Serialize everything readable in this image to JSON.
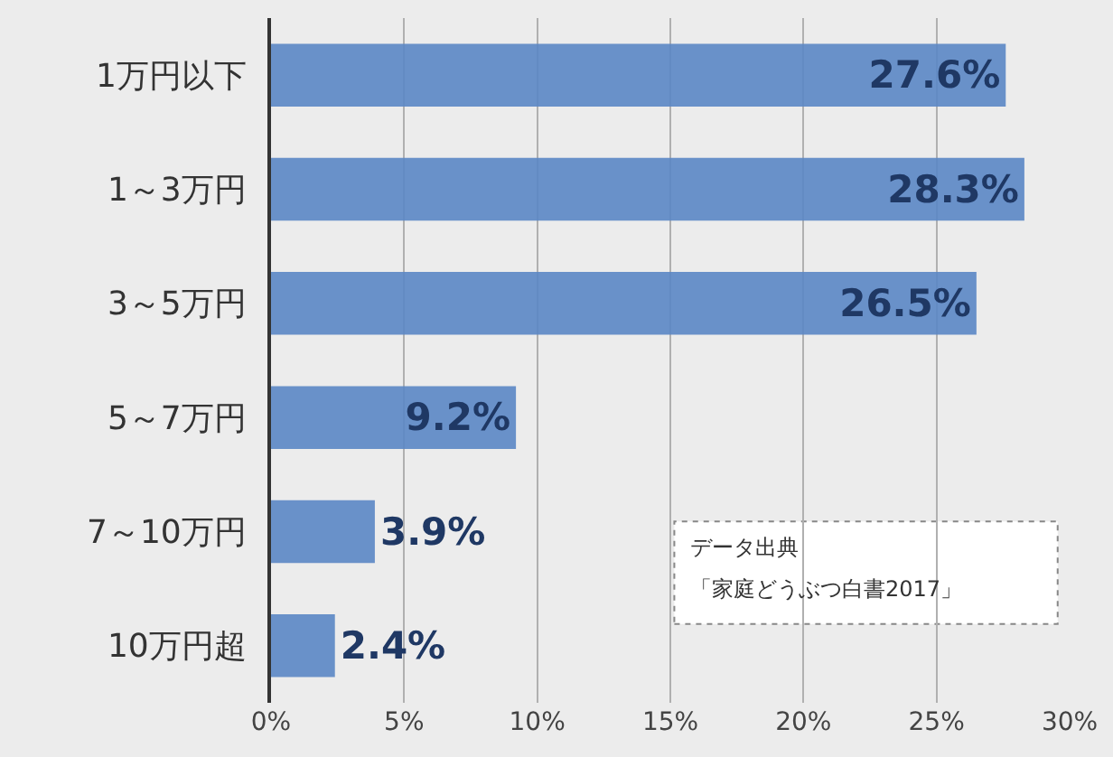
{
  "chart_data": {
    "type": "bar",
    "orientation": "horizontal",
    "categories": [
      "1万円以下",
      "1～3万円",
      "3～5万円",
      "5～7万円",
      "7～10万円",
      "10万円超"
    ],
    "values": [
      27.6,
      28.3,
      26.5,
      9.2,
      3.9,
      2.4
    ],
    "value_labels": [
      "27.6%",
      "28.3%",
      "26.5%",
      "9.2%",
      "3.9%",
      "2.4%"
    ],
    "color": "#5b87c5",
    "xlim": [
      0,
      30
    ],
    "xticks": [
      {
        "value": 0,
        "label": "0%"
      },
      {
        "value": 5,
        "label": "5%"
      },
      {
        "value": 10,
        "label": "10%"
      },
      {
        "value": 15,
        "label": "15%"
      },
      {
        "value": 20,
        "label": "20%"
      },
      {
        "value": 25,
        "label": "25%"
      },
      {
        "value": 30,
        "label": "30%"
      }
    ],
    "grid": "x",
    "annotations": [
      "データ出典",
      "「家庭どうぶつ白書2017」"
    ]
  }
}
